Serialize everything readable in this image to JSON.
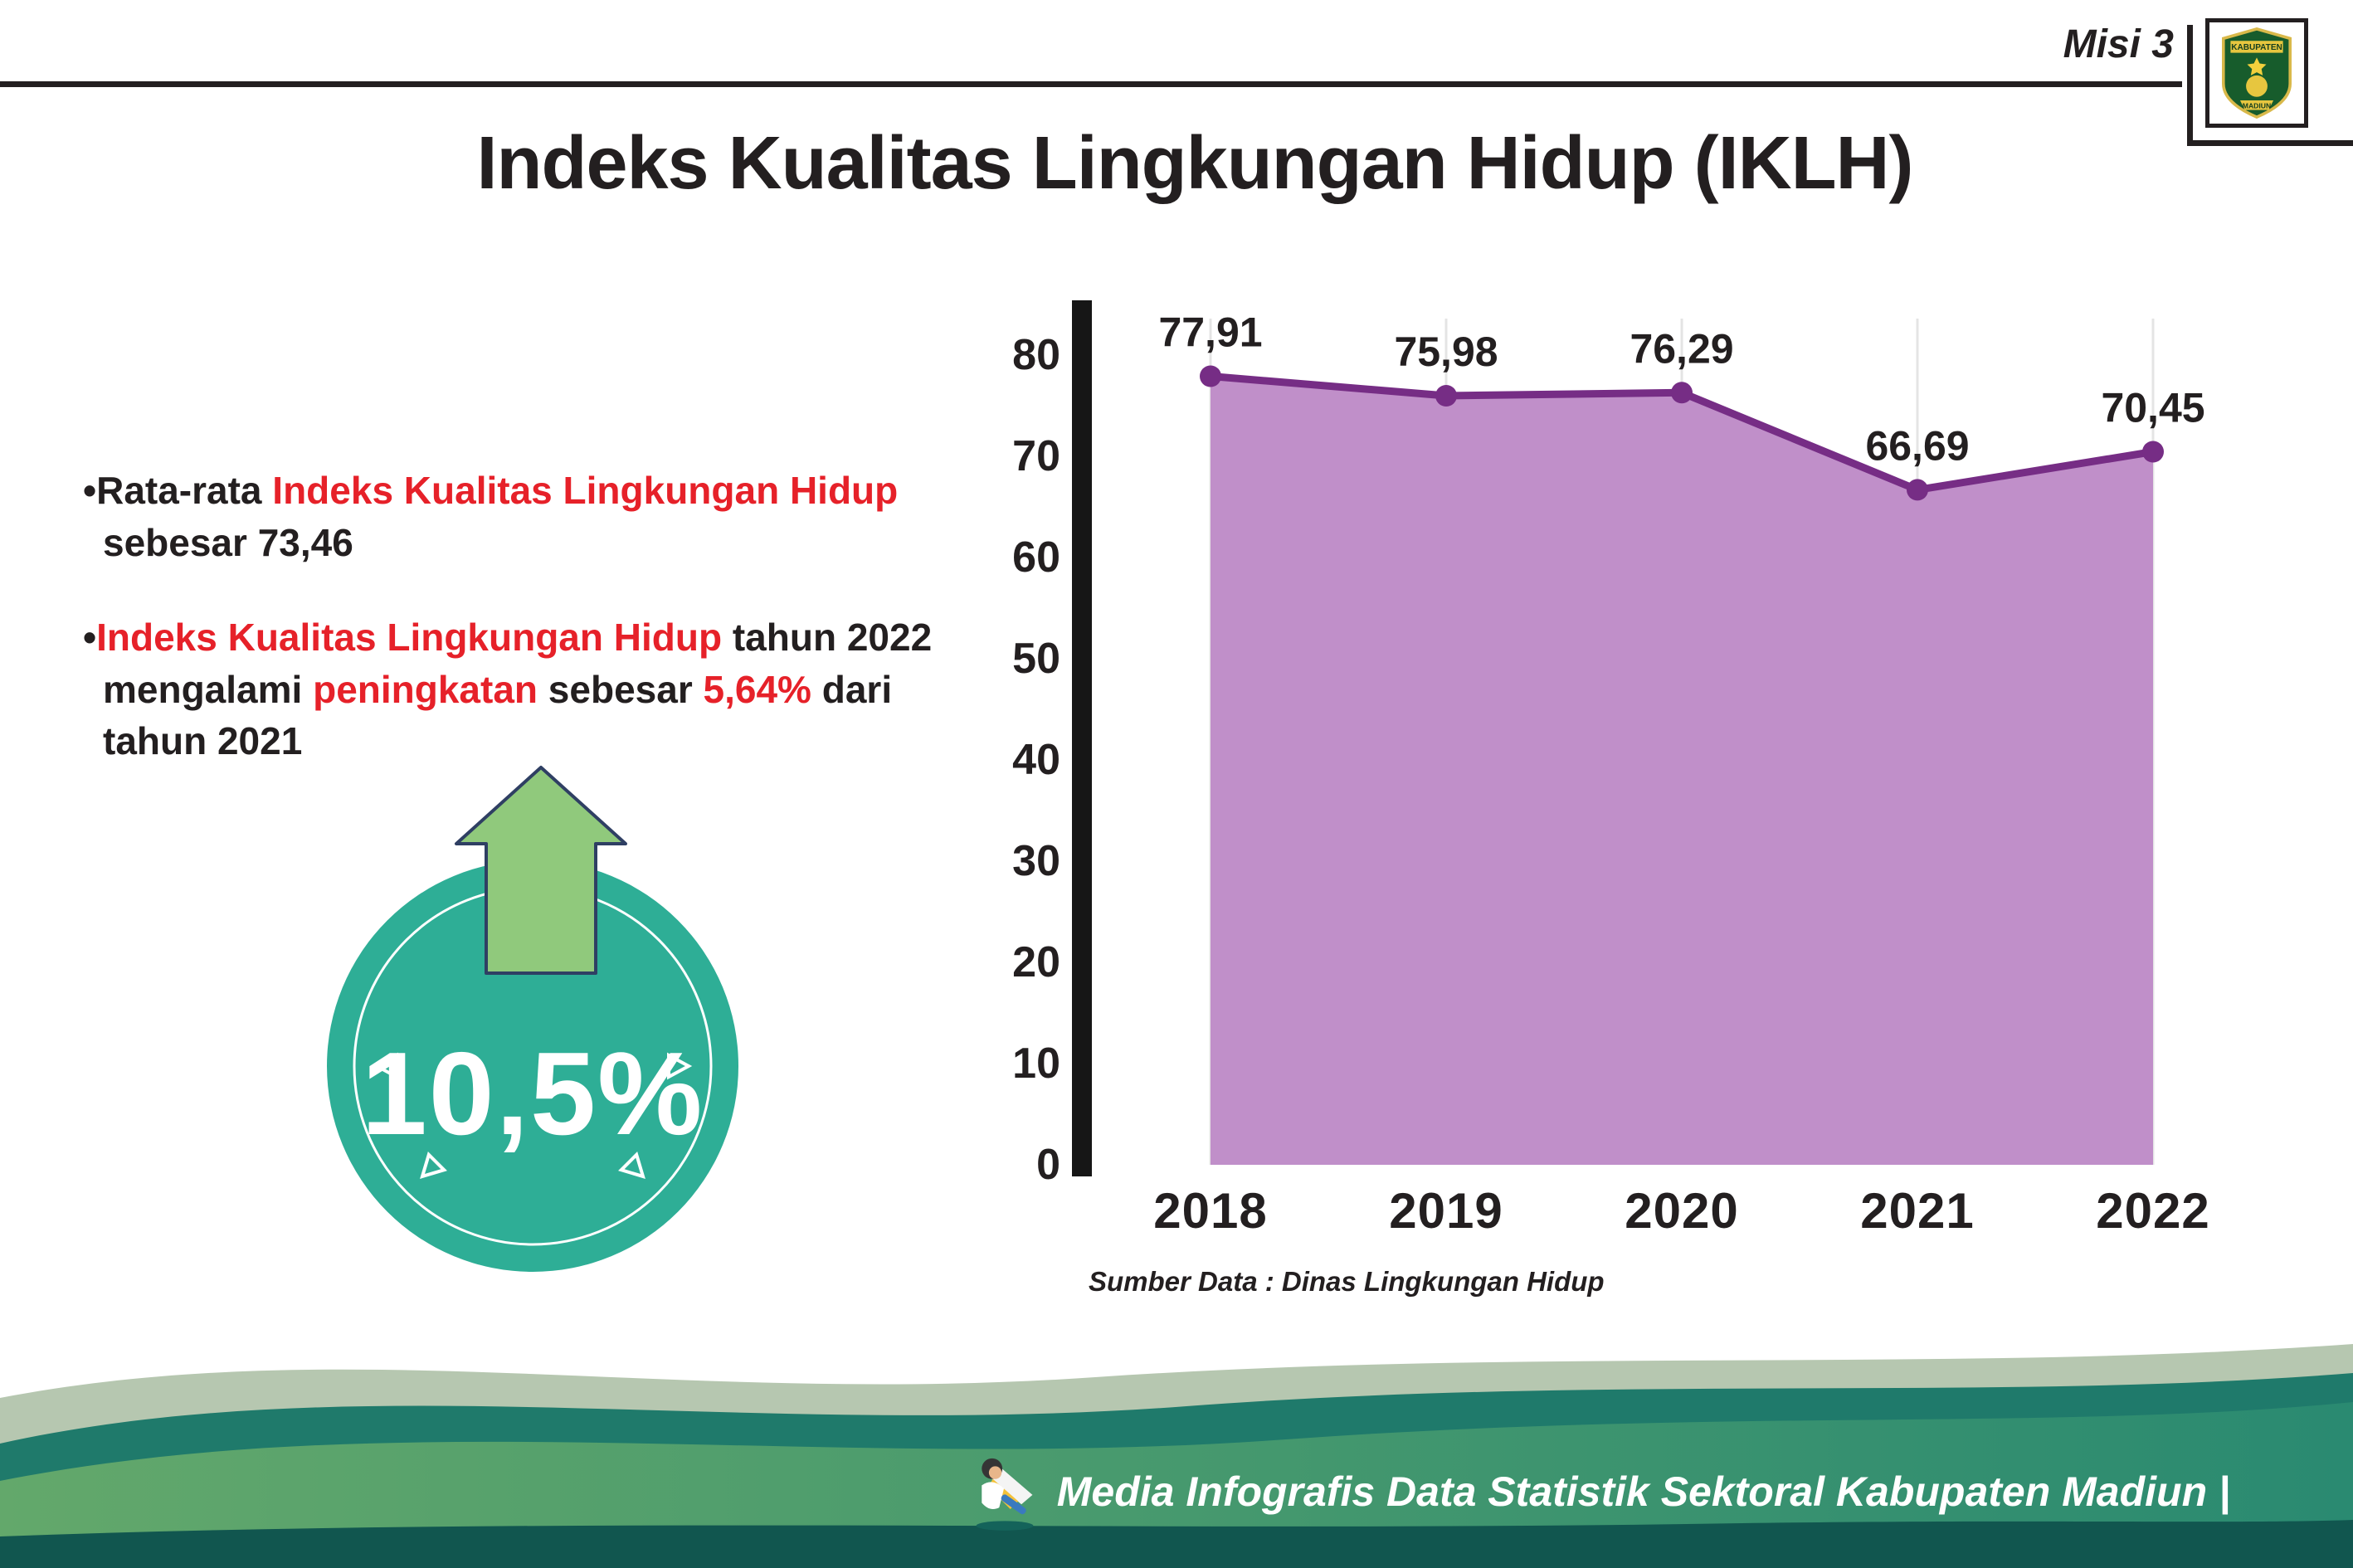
{
  "colors": {
    "red": "#e62129",
    "ink": "#231f20",
    "teal": "#2eae96",
    "arrow_green": "#90c97c",
    "arrow_outline": "#2f3f63",
    "chart_line": "#762d85",
    "chart_fill": "#c08fc9",
    "footer_sage": "#b6c7b0",
    "footer_teal": "#1f7a6b",
    "footer_green1": "#63a86b",
    "footer_green2": "#2a8a71",
    "footer_dark": "#11564f"
  },
  "header": {
    "misi_label": "Misi 3",
    "title": "Indeks Kualitas Lingkungan Hidup (IKLH)",
    "logo_text_top": "KABUPATEN",
    "logo_text_bottom": "MADIUN"
  },
  "bullets": [
    {
      "segments": [
        {
          "t": "•Rata-rata ",
          "c": "#231f20"
        },
        {
          "t": "Indeks Kualitas Lingkungan Hidup",
          "c": "#e62129"
        },
        {
          "t": " sebesar 73,46",
          "c": "#231f20"
        }
      ]
    },
    {
      "segments": [
        {
          "t": "•",
          "c": "#231f20"
        },
        {
          "t": "Indeks Kualitas Lingkungan Hidup",
          "c": "#e62129"
        },
        {
          "t": " tahun 2022 mengalami ",
          "c": "#231f20"
        },
        {
          "t": "peningkatan",
          "c": "#e62129"
        },
        {
          "t": " sebesar ",
          "c": "#231f20"
        },
        {
          "t": "5,64%",
          "c": "#e62129"
        },
        {
          "t": " dari tahun 2021",
          "c": "#231f20"
        }
      ]
    }
  ],
  "badge": {
    "value": "10,5%"
  },
  "chart_data": {
    "type": "area",
    "title": "Indeks Kualitas Lingkungan Hidup (IKLH)",
    "categories": [
      "2018",
      "2019",
      "2020",
      "2021",
      "2022"
    ],
    "values": [
      77.91,
      75.98,
      76.29,
      66.69,
      70.45
    ],
    "point_labels": [
      "77,91",
      "75,98",
      "76,29",
      "66,69",
      "70,45"
    ],
    "ylim": [
      0,
      80
    ],
    "yticks": [
      0,
      10,
      20,
      30,
      40,
      50,
      60,
      70,
      80
    ],
    "grid": "vertical-light",
    "legend": "none",
    "line_color": "#762d85",
    "fill_color": "#c08fc9",
    "source": "Sumber Data : Dinas Lingkungan Hidup"
  },
  "footer": {
    "caption": "Media Infografis Data Statistik Sektoral Kabupaten Madiun |"
  }
}
